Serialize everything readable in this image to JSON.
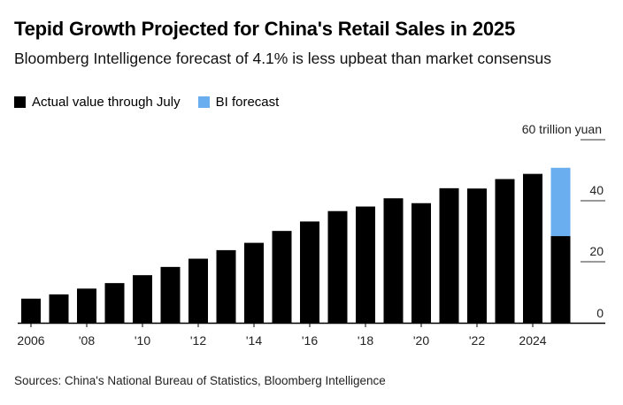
{
  "title": "Tepid Growth Projected for China's Retail Sales in 2025",
  "subtitle": "Bloomberg Intelligence forecast of 4.1% is less upbeat than market consensus",
  "legend": {
    "actual_label": "Actual value through July",
    "forecast_label": "BI forecast"
  },
  "colors": {
    "actual": "#000000",
    "forecast": "#6aaef0",
    "grid": "#333333"
  },
  "source": "Sources: China's National Bureau of Statistics, Bloomberg Intelligence",
  "chart_data": {
    "type": "bar",
    "stacked": true,
    "x": [
      2006,
      2007,
      2008,
      2009,
      2010,
      2011,
      2012,
      2013,
      2014,
      2015,
      2016,
      2017,
      2018,
      2019,
      2020,
      2021,
      2022,
      2023,
      2024,
      2025
    ],
    "series": [
      {
        "name": "Actual value through July",
        "values": [
          7.9,
          9.3,
          11.2,
          13.0,
          15.6,
          18.3,
          21.0,
          23.8,
          26.2,
          30.1,
          33.2,
          36.6,
          38.1,
          40.8,
          39.2,
          44.1,
          44.0,
          47.1,
          48.8,
          28.4
        ]
      },
      {
        "name": "BI forecast",
        "values": [
          0,
          0,
          0,
          0,
          0,
          0,
          0,
          0,
          0,
          0,
          0,
          0,
          0,
          0,
          0,
          0,
          0,
          0,
          0,
          22.4
        ]
      }
    ],
    "xticks": [
      "2006",
      "'08",
      "'10",
      "'12",
      "'14",
      "'16",
      "'18",
      "'20",
      "'22",
      "2024"
    ],
    "yticks": [
      "0",
      "20",
      "40",
      "60 trillion yuan"
    ],
    "ylim": [
      0,
      60
    ],
    "y_axis_side": "right",
    "grid": false,
    "legend_position": "top-left"
  }
}
